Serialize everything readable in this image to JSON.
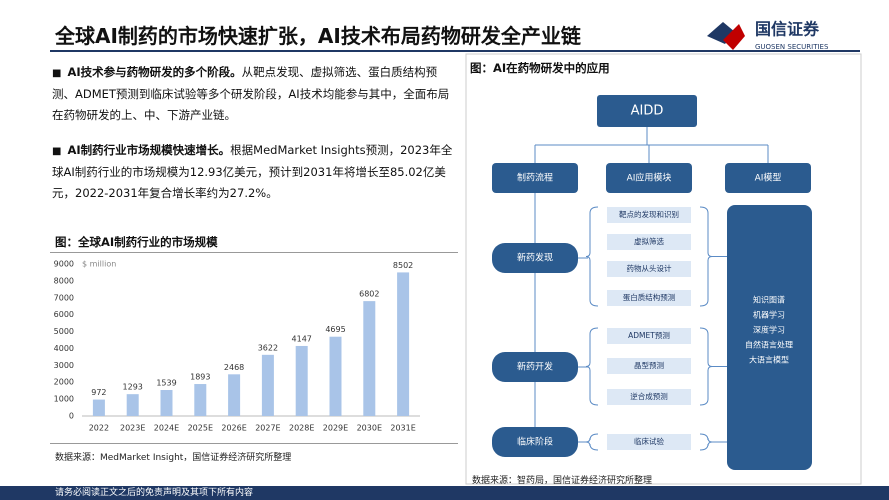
{
  "header": {
    "title": "全球AI制药的市场快速扩张，AI技术布局药物研发全产业链",
    "logo": "国信证券",
    "logo_en": "GUOSEN SECURITIES"
  },
  "bullets": [
    {
      "bold": "AI技术参与药物研发的多个阶段。",
      "text": "从靶点发现、虚拟筛选、蛋白质结构预测、ADMET预测到临床试验等多个研发阶段，AI技术均能参与其中，全面布局在药物研发的上、中、下游产业链。"
    },
    {
      "bold": "AI制药行业市场规模快速增长。",
      "text": "根据MedMarket Insights预测，2023年全球AI制药行业的市场规模为12.93亿美元，预计到2031年将增长至85.02亿美元，2022-2031年复合增长率约为27.2%。"
    }
  ],
  "chart_data": {
    "type": "bar",
    "title": "图：全球AI制药行业的市场规模",
    "unit": "$ million",
    "categories": [
      "2022",
      "2023E",
      "2024E",
      "2025E",
      "2026E",
      "2027E",
      "2028E",
      "2029E",
      "2030E",
      "2031E"
    ],
    "values": [
      972,
      1293,
      1539,
      1893,
      2468,
      3622,
      4147,
      4695,
      6802,
      8502
    ],
    "color": "#a9c4e8",
    "ylim": [
      0,
      9000
    ],
    "yticks": [
      0,
      1000,
      2000,
      3000,
      4000,
      5000,
      6000,
      7000,
      8000,
      9000
    ],
    "grid": false,
    "source": "数据来源：MedMarket Insight，国信证券经济研究所整理"
  },
  "diagram": {
    "title": "图：AI在药物研发中的应用",
    "root": "AIDD",
    "columns": [
      "制药流程",
      "AI应用模块",
      "AI模型"
    ],
    "stages": [
      "新药发现",
      "新药开发",
      "临床阶段"
    ],
    "modules": [
      [
        "靶点的发现和识别",
        "虚拟筛选",
        "药物从头设计",
        "蛋白质结构预测"
      ],
      [
        "ADMET预测",
        "晶型预测",
        "逆合成预测"
      ],
      [
        "临床试验"
      ]
    ],
    "models": [
      "知识图谱",
      "机器学习",
      "深度学习",
      "自然语言处理",
      "大语言模型"
    ],
    "source": "数据来源：智药局，国信证券经济研究所整理"
  },
  "footer": "请务必阅读正文之后的免责声明及其项下所有内容"
}
